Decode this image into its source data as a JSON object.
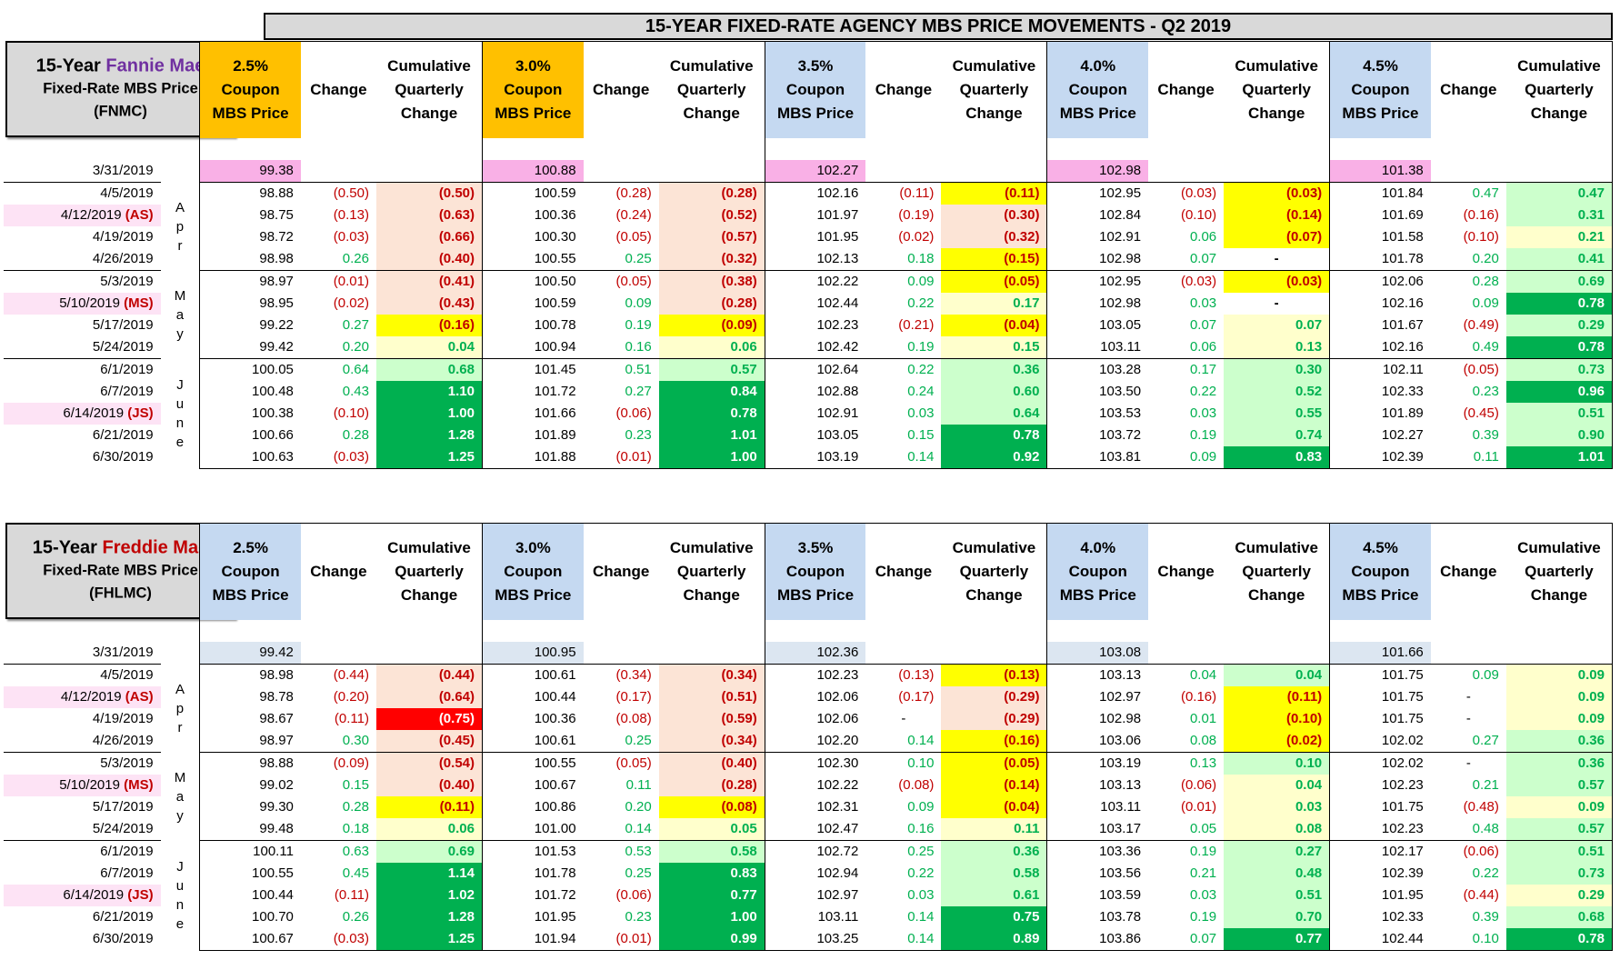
{
  "title": "15-YEAR FIXED-RATE AGENCY MBS PRICE MOVEMENTS - Q2 2019",
  "column_headers": {
    "coupons": [
      "2.5%",
      "3.0%",
      "3.5%",
      "4.0%",
      "4.5%"
    ],
    "coupon_word": "Coupon",
    "price_word": "MBS Price",
    "change": "Change",
    "cum1": "Cumulative",
    "cum2": "Quarterly",
    "cum3": "Change"
  },
  "months": {
    "apr": [
      "A",
      "p",
      "r"
    ],
    "may": [
      "M",
      "a",
      "y"
    ],
    "june": [
      "J",
      "u",
      "n",
      "e"
    ]
  },
  "fnma": {
    "label_prefix": "15-Year ",
    "label_name": "Fannie Mae",
    "label_line2": "Fixed-Rate MBS Price",
    "label_line3": "(FNMC)",
    "rows": [
      {
        "d": "3/31/2019",
        "t": "",
        "c": [
          [
            "99.38",
            "",
            ""
          ],
          [
            "100.88",
            "",
            ""
          ],
          [
            "102.27",
            "",
            ""
          ],
          [
            "102.98",
            "",
            ""
          ],
          [
            "101.38",
            "",
            ""
          ]
        ]
      },
      {
        "d": "4/5/2019",
        "t": "",
        "c": [
          [
            "98.88",
            "(0.50)",
            "(0.50)"
          ],
          [
            "100.59",
            "(0.28)",
            "(0.28)"
          ],
          [
            "102.16",
            "(0.11)",
            "(0.11)"
          ],
          [
            "102.95",
            "(0.03)",
            "(0.03)"
          ],
          [
            "101.84",
            "0.47",
            "0.47"
          ]
        ]
      },
      {
        "d": "4/12/2019 ",
        "t": "(AS)",
        "c": [
          [
            "98.75",
            "(0.13)",
            "(0.63)"
          ],
          [
            "100.36",
            "(0.24)",
            "(0.52)"
          ],
          [
            "101.97",
            "(0.19)",
            "(0.30)"
          ],
          [
            "102.84",
            "(0.10)",
            "(0.14)"
          ],
          [
            "101.69",
            "(0.16)",
            "0.31"
          ]
        ]
      },
      {
        "d": "4/19/2019",
        "t": "",
        "c": [
          [
            "98.72",
            "(0.03)",
            "(0.66)"
          ],
          [
            "100.30",
            "(0.05)",
            "(0.57)"
          ],
          [
            "101.95",
            "(0.02)",
            "(0.32)"
          ],
          [
            "102.91",
            "0.06",
            "(0.07)"
          ],
          [
            "101.58",
            "(0.10)",
            "0.21"
          ]
        ]
      },
      {
        "d": "4/26/2019",
        "t": "",
        "c": [
          [
            "98.98",
            "0.26",
            "(0.40)"
          ],
          [
            "100.55",
            "0.25",
            "(0.32)"
          ],
          [
            "102.13",
            "0.18",
            "(0.15)"
          ],
          [
            "102.98",
            "0.07",
            "-"
          ],
          [
            "101.78",
            "0.20",
            "0.41"
          ]
        ]
      },
      {
        "d": "5/3/2019",
        "t": "",
        "c": [
          [
            "98.97",
            "(0.01)",
            "(0.41)"
          ],
          [
            "100.50",
            "(0.05)",
            "(0.38)"
          ],
          [
            "102.22",
            "0.09",
            "(0.05)"
          ],
          [
            "102.95",
            "(0.03)",
            "(0.03)"
          ],
          [
            "102.06",
            "0.28",
            "0.69"
          ]
        ]
      },
      {
        "d": "5/10/2019 ",
        "t": "(MS)",
        "c": [
          [
            "98.95",
            "(0.02)",
            "(0.43)"
          ],
          [
            "100.59",
            "0.09",
            "(0.28)"
          ],
          [
            "102.44",
            "0.22",
            "0.17"
          ],
          [
            "102.98",
            "0.03",
            "-"
          ],
          [
            "102.16",
            "0.09",
            "0.78"
          ]
        ]
      },
      {
        "d": "5/17/2019",
        "t": "",
        "c": [
          [
            "99.22",
            "0.27",
            "(0.16)"
          ],
          [
            "100.78",
            "0.19",
            "(0.09)"
          ],
          [
            "102.23",
            "(0.21)",
            "(0.04)"
          ],
          [
            "103.05",
            "0.07",
            "0.07"
          ],
          [
            "101.67",
            "(0.49)",
            "0.29"
          ]
        ]
      },
      {
        "d": "5/24/2019",
        "t": "",
        "c": [
          [
            "99.42",
            "0.20",
            "0.04"
          ],
          [
            "100.94",
            "0.16",
            "0.06"
          ],
          [
            "102.42",
            "0.19",
            "0.15"
          ],
          [
            "103.11",
            "0.06",
            "0.13"
          ],
          [
            "102.16",
            "0.49",
            "0.78"
          ]
        ]
      },
      {
        "d": "6/1/2019",
        "t": "",
        "c": [
          [
            "100.05",
            "0.64",
            "0.68"
          ],
          [
            "101.45",
            "0.51",
            "0.57"
          ],
          [
            "102.64",
            "0.22",
            "0.36"
          ],
          [
            "103.28",
            "0.17",
            "0.30"
          ],
          [
            "102.11",
            "(0.05)",
            "0.73"
          ]
        ]
      },
      {
        "d": "6/7/2019",
        "t": "",
        "c": [
          [
            "100.48",
            "0.43",
            "1.10"
          ],
          [
            "101.72",
            "0.27",
            "0.84"
          ],
          [
            "102.88",
            "0.24",
            "0.60"
          ],
          [
            "103.50",
            "0.22",
            "0.52"
          ],
          [
            "102.33",
            "0.23",
            "0.96"
          ]
        ]
      },
      {
        "d": "6/14/2019 ",
        "t": "(JS)",
        "c": [
          [
            "100.38",
            "(0.10)",
            "1.00"
          ],
          [
            "101.66",
            "(0.06)",
            "0.78"
          ],
          [
            "102.91",
            "0.03",
            "0.64"
          ],
          [
            "103.53",
            "0.03",
            "0.55"
          ],
          [
            "101.89",
            "(0.45)",
            "0.51"
          ]
        ]
      },
      {
        "d": "6/21/2019",
        "t": "",
        "c": [
          [
            "100.66",
            "0.28",
            "1.28"
          ],
          [
            "101.89",
            "0.23",
            "1.01"
          ],
          [
            "103.05",
            "0.15",
            "0.78"
          ],
          [
            "103.72",
            "0.19",
            "0.74"
          ],
          [
            "102.27",
            "0.39",
            "0.90"
          ]
        ]
      },
      {
        "d": "6/30/2019",
        "t": "",
        "c": [
          [
            "100.63",
            "(0.03)",
            "1.25"
          ],
          [
            "101.88",
            "(0.01)",
            "1.00"
          ],
          [
            "103.19",
            "0.14",
            "0.92"
          ],
          [
            "103.81",
            "0.09",
            "0.83"
          ],
          [
            "102.39",
            "0.11",
            "1.01"
          ]
        ]
      }
    ],
    "fills": [
      [],
      [
        "c-peach",
        "c-peach",
        "c-yel",
        "c-yel",
        "c-lgrn"
      ],
      [
        "c-peach",
        "c-peach",
        "c-peach",
        "c-yel",
        "c-lgrn"
      ],
      [
        "c-peach",
        "c-peach",
        "c-peach",
        "c-yel",
        "c-lyel"
      ],
      [
        "c-peach",
        "c-peach",
        "c-yel",
        "c-none",
        "c-lgrn"
      ],
      [
        "c-peach",
        "c-peach",
        "c-yel",
        "c-yel",
        "c-lgrn"
      ],
      [
        "c-peach",
        "c-peach",
        "c-lyel",
        "c-none",
        "c-grn"
      ],
      [
        "c-yel",
        "c-yel",
        "c-yel",
        "c-lyel",
        "c-lgrn"
      ],
      [
        "c-lyel",
        "c-lyel",
        "c-lyel",
        "c-lyel",
        "c-grn"
      ],
      [
        "c-lgrn",
        "c-lgrn",
        "c-lgrn",
        "c-lgrn",
        "c-lgrn"
      ],
      [
        "c-grn",
        "c-grn",
        "c-lgrn",
        "c-lgrn",
        "c-grn"
      ],
      [
        "c-grn",
        "c-grn",
        "c-lgrn",
        "c-lgrn",
        "c-lgrn"
      ],
      [
        "c-grn",
        "c-grn",
        "c-grn",
        "c-lgrn",
        "c-lgrn"
      ],
      [
        "c-grn",
        "c-grn",
        "c-grn",
        "c-grn",
        "c-grn"
      ]
    ]
  },
  "fhlmc": {
    "label_prefix": "15-Year ",
    "label_name": "Freddie Mac",
    "label_line2": "Fixed-Rate MBS Price",
    "label_line3": "(FHLMC)",
    "rows": [
      {
        "d": "3/31/2019",
        "t": "",
        "c": [
          [
            "99.42",
            "",
            ""
          ],
          [
            "100.95",
            "",
            ""
          ],
          [
            "102.36",
            "",
            ""
          ],
          [
            "103.08",
            "",
            ""
          ],
          [
            "101.66",
            "",
            ""
          ]
        ]
      },
      {
        "d": "4/5/2019",
        "t": "",
        "c": [
          [
            "98.98",
            "(0.44)",
            "(0.44)"
          ],
          [
            "100.61",
            "(0.34)",
            "(0.34)"
          ],
          [
            "102.23",
            "(0.13)",
            "(0.13)"
          ],
          [
            "103.13",
            "0.04",
            "0.04"
          ],
          [
            "101.75",
            "0.09",
            "0.09"
          ]
        ]
      },
      {
        "d": "4/12/2019 ",
        "t": "(AS)",
        "c": [
          [
            "98.78",
            "(0.20)",
            "(0.64)"
          ],
          [
            "100.44",
            "(0.17)",
            "(0.51)"
          ],
          [
            "102.06",
            "(0.17)",
            "(0.29)"
          ],
          [
            "102.97",
            "(0.16)",
            "(0.11)"
          ],
          [
            "101.75",
            "-",
            "0.09"
          ]
        ]
      },
      {
        "d": "4/19/2019",
        "t": "",
        "c": [
          [
            "98.67",
            "(0.11)",
            "(0.75)"
          ],
          [
            "100.36",
            "(0.08)",
            "(0.59)"
          ],
          [
            "102.06",
            "-",
            "(0.29)"
          ],
          [
            "102.98",
            "0.01",
            "(0.10)"
          ],
          [
            "101.75",
            "-",
            "0.09"
          ]
        ]
      },
      {
        "d": "4/26/2019",
        "t": "",
        "c": [
          [
            "98.97",
            "0.30",
            "(0.45)"
          ],
          [
            "100.61",
            "0.25",
            "(0.34)"
          ],
          [
            "102.20",
            "0.14",
            "(0.16)"
          ],
          [
            "103.06",
            "0.08",
            "(0.02)"
          ],
          [
            "102.02",
            "0.27",
            "0.36"
          ]
        ]
      },
      {
        "d": "5/3/2019",
        "t": "",
        "c": [
          [
            "98.88",
            "(0.09)",
            "(0.54)"
          ],
          [
            "100.55",
            "(0.05)",
            "(0.40)"
          ],
          [
            "102.30",
            "0.10",
            "(0.05)"
          ],
          [
            "103.19",
            "0.13",
            "0.10"
          ],
          [
            "102.02",
            "-",
            "0.36"
          ]
        ]
      },
      {
        "d": "5/10/2019 ",
        "t": "(MS)",
        "c": [
          [
            "99.02",
            "0.15",
            "(0.40)"
          ],
          [
            "100.67",
            "0.11",
            "(0.28)"
          ],
          [
            "102.22",
            "(0.08)",
            "(0.14)"
          ],
          [
            "103.13",
            "(0.06)",
            "0.04"
          ],
          [
            "102.23",
            "0.21",
            "0.57"
          ]
        ]
      },
      {
        "d": "5/17/2019",
        "t": "",
        "c": [
          [
            "99.30",
            "0.28",
            "(0.11)"
          ],
          [
            "100.86",
            "0.20",
            "(0.08)"
          ],
          [
            "102.31",
            "0.09",
            "(0.04)"
          ],
          [
            "103.11",
            "(0.01)",
            "0.03"
          ],
          [
            "101.75",
            "(0.48)",
            "0.09"
          ]
        ]
      },
      {
        "d": "5/24/2019",
        "t": "",
        "c": [
          [
            "99.48",
            "0.18",
            "0.06"
          ],
          [
            "101.00",
            "0.14",
            "0.05"
          ],
          [
            "102.47",
            "0.16",
            "0.11"
          ],
          [
            "103.17",
            "0.05",
            "0.08"
          ],
          [
            "102.23",
            "0.48",
            "0.57"
          ]
        ]
      },
      {
        "d": "6/1/2019",
        "t": "",
        "c": [
          [
            "100.11",
            "0.63",
            "0.69"
          ],
          [
            "101.53",
            "0.53",
            "0.58"
          ],
          [
            "102.72",
            "0.25",
            "0.36"
          ],
          [
            "103.36",
            "0.19",
            "0.27"
          ],
          [
            "102.17",
            "(0.06)",
            "0.51"
          ]
        ]
      },
      {
        "d": "6/7/2019",
        "t": "",
        "c": [
          [
            "100.55",
            "0.45",
            "1.14"
          ],
          [
            "101.78",
            "0.25",
            "0.83"
          ],
          [
            "102.94",
            "0.22",
            "0.58"
          ],
          [
            "103.56",
            "0.21",
            "0.48"
          ],
          [
            "102.39",
            "0.22",
            "0.73"
          ]
        ]
      },
      {
        "d": "6/14/2019 ",
        "t": "(JS)",
        "c": [
          [
            "100.44",
            "(0.11)",
            "1.02"
          ],
          [
            "101.72",
            "(0.06)",
            "0.77"
          ],
          [
            "102.97",
            "0.03",
            "0.61"
          ],
          [
            "103.59",
            "0.03",
            "0.51"
          ],
          [
            "101.95",
            "(0.44)",
            "0.29"
          ]
        ]
      },
      {
        "d": "6/21/2019",
        "t": "",
        "c": [
          [
            "100.70",
            "0.26",
            "1.28"
          ],
          [
            "101.95",
            "0.23",
            "1.00"
          ],
          [
            "103.11",
            "0.14",
            "0.75"
          ],
          [
            "103.78",
            "0.19",
            "0.70"
          ],
          [
            "102.33",
            "0.39",
            "0.68"
          ]
        ]
      },
      {
        "d": "6/30/2019",
        "t": "",
        "c": [
          [
            "100.67",
            "(0.03)",
            "1.25"
          ],
          [
            "101.94",
            "(0.01)",
            "0.99"
          ],
          [
            "103.25",
            "0.14",
            "0.89"
          ],
          [
            "103.86",
            "0.07",
            "0.77"
          ],
          [
            "102.44",
            "0.10",
            "0.78"
          ]
        ]
      }
    ],
    "fills": [
      [],
      [
        "c-peach",
        "c-peach",
        "c-yel",
        "c-lgrn",
        "c-lyel"
      ],
      [
        "c-peach",
        "c-peach",
        "c-peach",
        "c-yel",
        "c-lyel"
      ],
      [
        "c-red",
        "c-peach",
        "c-peach",
        "c-yel",
        "c-lyel"
      ],
      [
        "c-peach",
        "c-peach",
        "c-yel",
        "c-yel",
        "c-lgrn"
      ],
      [
        "c-peach",
        "c-peach",
        "c-yel",
        "c-lgrn",
        "c-lgrn"
      ],
      [
        "c-peach",
        "c-peach",
        "c-yel",
        "c-lyel",
        "c-lgrn"
      ],
      [
        "c-yel",
        "c-yel",
        "c-yel",
        "c-lyel",
        "c-lyel"
      ],
      [
        "c-lyel",
        "c-lyel",
        "c-lyel",
        "c-lyel",
        "c-lgrn"
      ],
      [
        "c-lgrn",
        "c-lgrn",
        "c-lgrn",
        "c-lgrn",
        "c-lgrn"
      ],
      [
        "c-grn",
        "c-grn",
        "c-lgrn",
        "c-lgrn",
        "c-lgrn"
      ],
      [
        "c-grn",
        "c-grn",
        "c-lgrn",
        "c-lgrn",
        "c-lyel"
      ],
      [
        "c-grn",
        "c-grn",
        "c-grn",
        "c-lgrn",
        "c-lgrn"
      ],
      [
        "c-grn",
        "c-grn",
        "c-grn",
        "c-grn",
        "c-grn"
      ]
    ]
  },
  "colors": {
    "gold_header": "#ffc000",
    "blue_header": "#c5d9f1",
    "pink_highlight": "#fde3f5",
    "negative": "#c00000",
    "positive": "#00b050",
    "fannie_purple": "#7030a0",
    "freddie_red": "#c00000"
  }
}
